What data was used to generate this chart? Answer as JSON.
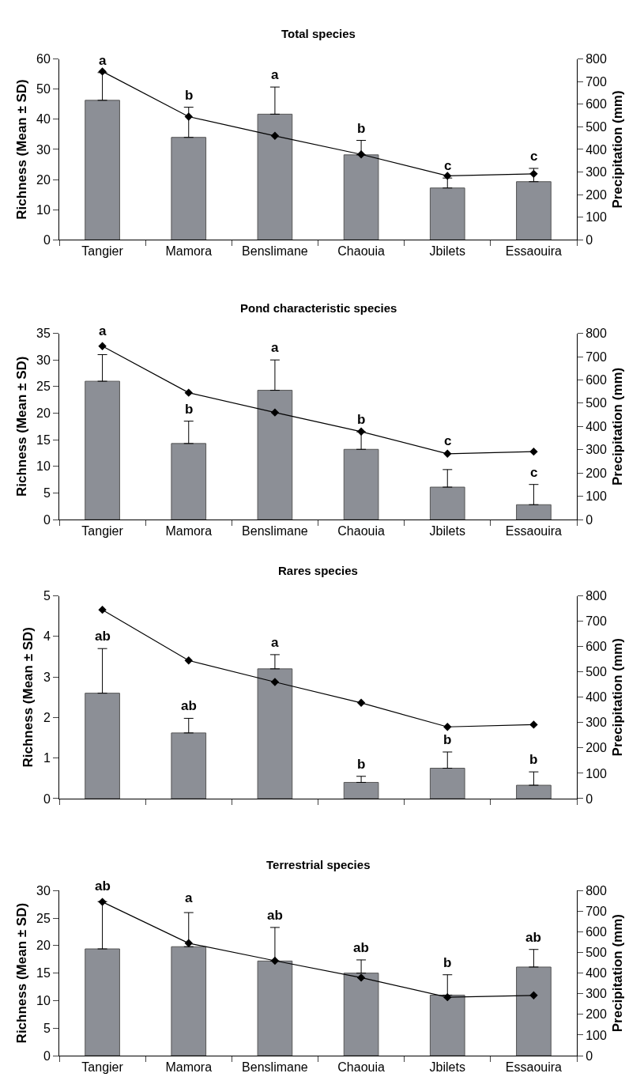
{
  "chart_data": [
    {
      "type": "bar",
      "title": "Total species",
      "ylabel": "Richness (Mean ± SD)",
      "y2label": "Precipitation (mm)",
      "categories": [
        "Tangier",
        "Mamora",
        "Benslimane",
        "Chaouia",
        "Jbilets",
        "Essaouira"
      ],
      "series": [
        {
          "color": "#8c8f96",
          "values": [
            46.3,
            34,
            41.7,
            28.2,
            17.2,
            19.3
          ],
          "errors": [
            [
              46.3,
              55.5
            ],
            [
              34,
              44
            ],
            [
              41.7,
              50.7
            ],
            [
              28.2,
              33
            ],
            [
              17.2,
              20.5
            ],
            [
              19.3,
              23.7
            ]
          ]
        },
        {
          "type": "line",
          "axis": "y2",
          "color": "#000000",
          "values": [
            745,
            545,
            460,
            378,
            283,
            292
          ]
        }
      ],
      "marker": "diamond",
      "ylim": [
        0,
        60
      ],
      "yticks": [
        0,
        10,
        20,
        30,
        40,
        50,
        60
      ],
      "y2lim": [
        0,
        800
      ],
      "y2ticks": [
        0,
        100,
        200,
        300,
        400,
        500,
        600,
        700,
        800
      ],
      "annotations": [
        {
          "text": "a",
          "x": "Tangier",
          "y": 55.5
        },
        {
          "text": "b",
          "x": "Mamora",
          "y": 44
        },
        {
          "text": "a",
          "x": "Benslimane",
          "y": 50.7
        },
        {
          "text": "b",
          "x": "Chaouia",
          "y": 33
        },
        {
          "text": "c",
          "x": "Jbilets",
          "y": 20.5
        },
        {
          "text": "c",
          "x": "Essaouira",
          "y": 23.7
        }
      ]
    },
    {
      "type": "bar",
      "title": "Pond characteristic species",
      "ylabel": "Richness (Mean ± SD)",
      "y2label": "Precipitation (mm)",
      "categories": [
        "Tangier",
        "Mamora",
        "Benslimane",
        "Chaouia",
        "Jbilets",
        "Essaouira"
      ],
      "series": [
        {
          "color": "#8c8f96",
          "values": [
            26,
            14.3,
            24.3,
            13.2,
            6.1,
            2.8
          ],
          "errors": [
            [
              26,
              31
            ],
            [
              14.3,
              18.5
            ],
            [
              24.3,
              30
            ],
            [
              13.2,
              16.5
            ],
            [
              6.1,
              9.4
            ],
            [
              2.8,
              6.6
            ]
          ]
        },
        {
          "type": "line",
          "axis": "y2",
          "color": "#000000",
          "values": [
            745,
            545,
            460,
            378,
            283,
            292
          ]
        }
      ],
      "marker": "diamond",
      "ylim": [
        0,
        35
      ],
      "yticks": [
        0,
        5,
        10,
        15,
        20,
        25,
        30,
        35
      ],
      "y2lim": [
        0,
        800
      ],
      "y2ticks": [
        0,
        100,
        200,
        300,
        400,
        500,
        600,
        700,
        800
      ],
      "annotations": [
        {
          "text": "a",
          "x": "Tangier",
          "y": 33.2
        },
        {
          "text": "b",
          "x": "Mamora",
          "y": 18.5
        },
        {
          "text": "a",
          "x": "Benslimane",
          "y": 30
        },
        {
          "text": "b",
          "x": "Chaouia",
          "y": 16.5
        },
        {
          "text": "c",
          "x": "Jbilets",
          "y": 12.5
        },
        {
          "text": "c",
          "x": "Essaouira",
          "y": 6.6
        }
      ]
    },
    {
      "type": "bar",
      "title": "Rares species",
      "ylabel": "Richness (Mean ± SD)",
      "y2label": "Precipitation (mm)",
      "categories": [
        null,
        null,
        null,
        null,
        null,
        null
      ],
      "series": [
        {
          "color": "#8c8f96",
          "values": [
            2.6,
            1.62,
            3.2,
            0.4,
            0.75,
            0.33
          ],
          "errors": [
            [
              2.6,
              3.7
            ],
            [
              1.62,
              1.98
            ],
            [
              3.2,
              3.55
            ],
            [
              0.4,
              0.55
            ],
            [
              0.75,
              1.15
            ],
            [
              0.33,
              0.66
            ]
          ]
        },
        {
          "type": "line",
          "axis": "y2",
          "color": "#000000",
          "values": [
            745,
            545,
            460,
            378,
            283,
            292
          ]
        }
      ],
      "marker": "diamond",
      "ylim": [
        0,
        5
      ],
      "yticks": [
        0,
        1,
        2,
        3,
        4,
        5
      ],
      "y2lim": [
        0,
        800
      ],
      "y2ticks": [
        0,
        100,
        200,
        300,
        400,
        500,
        600,
        700,
        800
      ],
      "tick_labels": "y",
      "annotations": [
        "ab",
        "ab",
        "a",
        "b",
        "b",
        "b"
      ]
    },
    {
      "type": "bar",
      "title": "Terrestrial species",
      "ylabel": "Richness (Mean ± SD)",
      "y2label": "Precipitation (mm)",
      "categories": [
        "Tangier",
        "Mamora",
        "Benslimane",
        "Chaouia",
        "Jbilets",
        "Essaouira"
      ],
      "series": [
        {
          "color": "#8c8f96",
          "values": [
            19.4,
            19.8,
            17.2,
            15,
            11,
            16.1
          ],
          "errors": [
            [
              19.4,
              28
            ],
            [
              19.8,
              26
            ],
            [
              17.2,
              23.3
            ],
            [
              15,
              17.4
            ],
            [
              11,
              14.7
            ],
            [
              16.1,
              19.3
            ]
          ]
        },
        {
          "type": "line",
          "axis": "y2",
          "color": "#000000",
          "values": [
            745,
            545,
            460,
            378,
            283,
            292
          ]
        }
      ],
      "marker": "diamond",
      "ylim": [
        0,
        30
      ],
      "yticks": [
        0,
        5,
        10,
        15,
        20,
        25,
        30
      ],
      "y2lim": [
        0,
        800
      ],
      "y2ticks": [
        0,
        100,
        200,
        300,
        400,
        500,
        600,
        700,
        800
      ],
      "annotations": [
        {
          "text": "ab",
          "x": "Tangier",
          "y": 28.6
        },
        {
          "text": "a",
          "x": "Mamora",
          "y": 26.5
        },
        {
          "text": "ab",
          "x": "Benslimane",
          "y": 23.3
        },
        {
          "text": "ab",
          "x": "Chaouia",
          "y": 17.4
        },
        {
          "text": "b",
          "x": "Jbilets",
          "y": 14.7
        },
        {
          "text": "ab",
          "x": "Essaouira",
          "y": 19.3
        }
      ]
    }
  ]
}
